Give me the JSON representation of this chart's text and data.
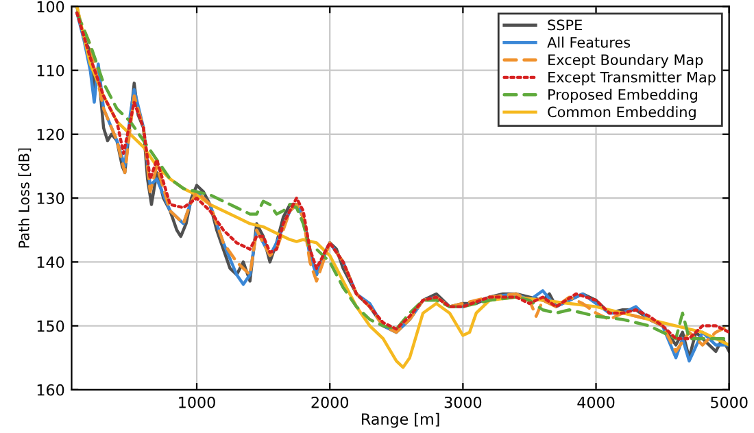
{
  "chart_data": {
    "type": "line",
    "xlabel": "Range [m]",
    "ylabel": "Path Loss [dB]",
    "xlim": [
      60,
      5000
    ],
    "xticks": [
      1000,
      2000,
      3000,
      4000,
      5000
    ],
    "ylim": [
      160,
      100
    ],
    "yticks": [
      100,
      110,
      120,
      130,
      140,
      150,
      160
    ],
    "grid": true,
    "legend": "top right",
    "series": [
      {
        "name": "SSPE",
        "color": "#505050",
        "line_style": "solid",
        "x": [
          100,
          150,
          200,
          230,
          260,
          300,
          330,
          360,
          400,
          440,
          460,
          500,
          530,
          560,
          600,
          630,
          660,
          700,
          750,
          800,
          850,
          880,
          920,
          960,
          1000,
          1050,
          1100,
          1150,
          1200,
          1250,
          1300,
          1350,
          1400,
          1450,
          1500,
          1550,
          1600,
          1650,
          1700,
          1750,
          1800,
          1850,
          1900,
          1950,
          2000,
          2050,
          2100,
          2200,
          2300,
          2400,
          2500,
          2600,
          2700,
          2800,
          2900,
          3000,
          3100,
          3200,
          3300,
          3400,
          3500,
          3600,
          3650,
          3700,
          3800,
          3900,
          4000,
          4100,
          4200,
          4300,
          4400,
          4500,
          4600,
          4650,
          4700,
          4750,
          4800,
          4900,
          4950,
          5000
        ],
        "values": [
          100,
          105,
          107,
          113,
          110,
          119,
          121,
          120,
          121,
          125,
          126,
          118,
          112,
          117,
          119,
          127,
          131,
          126,
          130,
          132,
          135,
          136,
          134,
          130,
          128,
          129,
          131,
          135,
          138,
          141,
          142,
          140,
          143,
          134,
          136,
          140,
          137,
          133,
          131,
          131,
          133,
          138,
          142,
          139,
          137,
          138,
          141,
          145,
          147,
          150,
          151,
          149,
          146,
          145,
          147,
          146.5,
          146.5,
          145.5,
          145,
          145,
          145.5,
          146,
          145,
          147,
          146,
          145,
          146,
          148,
          147.5,
          147.5,
          149,
          150,
          153,
          151,
          155,
          151,
          152,
          154,
          152,
          154
        ]
      },
      {
        "name": "All Features",
        "color": "#3a87d6",
        "line_style": "solid",
        "x": [
          100,
          150,
          200,
          230,
          260,
          300,
          400,
          460,
          500,
          530,
          600,
          650,
          700,
          800,
          900,
          950,
          1000,
          1100,
          1200,
          1300,
          1350,
          1400,
          1450,
          1500,
          1550,
          1600,
          1700,
          1750,
          1800,
          1850,
          1900,
          2000,
          2100,
          2200,
          2300,
          2400,
          2500,
          2600,
          2700,
          2800,
          2900,
          3000,
          3200,
          3400,
          3500,
          3600,
          3700,
          3900,
          4000,
          4100,
          4200,
          4300,
          4400,
          4500,
          4600,
          4650,
          4700,
          4800,
          4900,
          5000
        ],
        "values": [
          101,
          105,
          110,
          115,
          109,
          116,
          121,
          125,
          117,
          113,
          119,
          128,
          127,
          132,
          134,
          131,
          129,
          131,
          137,
          142,
          143.5,
          142,
          135,
          137,
          139,
          137,
          132,
          131,
          133,
          139,
          142,
          137,
          140,
          145,
          146.5,
          150,
          151,
          149,
          146,
          145.5,
          147,
          147,
          145.5,
          145,
          146,
          144.5,
          147,
          145,
          146.5,
          148,
          148,
          147,
          149,
          150,
          155,
          152,
          155.5,
          151,
          153,
          153
        ]
      },
      {
        "name": "Except Boundary Map",
        "color": "#f0922e",
        "line_style": "dashed",
        "x": [
          100,
          200,
          300,
          400,
          460,
          500,
          530,
          600,
          650,
          700,
          800,
          900,
          950,
          1000,
          1100,
          1200,
          1300,
          1400,
          1450,
          1500,
          1550,
          1600,
          1700,
          1750,
          1800,
          1850,
          1900,
          2000,
          2100,
          2200,
          2300,
          2400,
          2500,
          2600,
          2700,
          2800,
          2900,
          3000,
          3200,
          3400,
          3500,
          3550,
          3600,
          3700,
          3800,
          3900,
          4000,
          4100,
          4200,
          4400,
          4500,
          4600,
          4700,
          4800,
          4900,
          5000
        ],
        "values": [
          101,
          106,
          116,
          121,
          126,
          119,
          114,
          119,
          129,
          125,
          132,
          134,
          131,
          129,
          131,
          137,
          140,
          142,
          135,
          137,
          139,
          138,
          132,
          131,
          133,
          140,
          143,
          137,
          140,
          145,
          147,
          150,
          151,
          149,
          146,
          145.5,
          147,
          146.5,
          145.5,
          145,
          146,
          148.5,
          146,
          147,
          145.5,
          146.5,
          148,
          149,
          148,
          149,
          150,
          154,
          151,
          153,
          151,
          150
        ]
      },
      {
        "name": "Except Transmitter Map",
        "color": "#d62020",
        "line_style": "dotted",
        "x": [
          100,
          200,
          300,
          400,
          450,
          500,
          530,
          600,
          650,
          700,
          800,
          900,
          1000,
          1100,
          1200,
          1300,
          1400,
          1450,
          1500,
          1550,
          1600,
          1650,
          1750,
          1800,
          1850,
          1900,
          2000,
          2100,
          2200,
          2300,
          2400,
          2500,
          2600,
          2700,
          2800,
          2900,
          3000,
          3200,
          3400,
          3500,
          3600,
          3700,
          3850,
          4000,
          4100,
          4200,
          4300,
          4400,
          4500,
          4600,
          4700,
          4800,
          4900,
          5000
        ],
        "values": [
          101,
          108,
          114,
          118,
          123,
          118,
          115,
          119,
          127,
          124,
          131,
          131.5,
          130,
          132,
          135,
          137,
          138,
          136,
          136,
          138.5,
          138,
          134,
          130,
          132,
          138,
          141,
          137,
          140,
          145,
          147,
          149.5,
          150.5,
          148.5,
          146,
          145.5,
          147,
          147,
          145.5,
          145.5,
          146.5,
          145.5,
          147,
          145,
          146,
          148,
          148,
          147.5,
          148.5,
          150,
          152,
          152,
          150,
          150,
          151
        ]
      },
      {
        "name": "Proposed Embedding",
        "color": "#5faa3c",
        "line_style": "dashed",
        "x": [
          100,
          200,
          300,
          400,
          500,
          600,
          700,
          800,
          900,
          1000,
          1100,
          1200,
          1300,
          1400,
          1450,
          1500,
          1550,
          1600,
          1650,
          1700,
          1750,
          1800,
          1850,
          1900,
          2000,
          2100,
          2200,
          2300,
          2400,
          2500,
          2600,
          2700,
          2800,
          2900,
          3000,
          3200,
          3400,
          3500,
          3600,
          3700,
          3800,
          4000,
          4200,
          4400,
          4500,
          4600,
          4650,
          4700,
          4800,
          5000
        ],
        "values": [
          101,
          106,
          112,
          116,
          118,
          121,
          124,
          127,
          128.5,
          129,
          129.5,
          130.5,
          131.5,
          132.5,
          132.5,
          130.5,
          131,
          132.5,
          132,
          131,
          131.5,
          134,
          138,
          138,
          140,
          144,
          147,
          149,
          150,
          150.5,
          148,
          146,
          146,
          147,
          147,
          146,
          145.5,
          146,
          147.5,
          148,
          147.5,
          148.5,
          149,
          150,
          151,
          152,
          148,
          152,
          152,
          152
        ]
      },
      {
        "name": "Common Embedding",
        "color": "#f5b920",
        "line_style": "solid",
        "x": [
          100,
          200,
          300,
          400,
          500,
          600,
          700,
          800,
          900,
          1000,
          1100,
          1200,
          1300,
          1400,
          1500,
          1600,
          1700,
          1750,
          1800,
          1900,
          2000,
          2100,
          2200,
          2300,
          2400,
          2500,
          2550,
          2600,
          2700,
          2800,
          2900,
          3000,
          3050,
          3100,
          3200,
          3400,
          3600,
          3800,
          4000,
          4200,
          4400,
          4600,
          4800,
          5000
        ],
        "values": [
          100,
          109,
          114,
          118,
          120,
          122,
          125,
          127,
          128.5,
          129.5,
          131,
          132,
          133,
          134,
          134.5,
          135.5,
          136.5,
          136.8,
          136.5,
          137,
          139,
          143,
          147,
          150,
          152,
          155.5,
          156.5,
          155,
          148,
          146.5,
          148,
          151.5,
          151,
          148,
          146,
          145.5,
          146,
          146.5,
          147,
          148,
          149,
          150,
          151,
          153
        ]
      }
    ]
  }
}
